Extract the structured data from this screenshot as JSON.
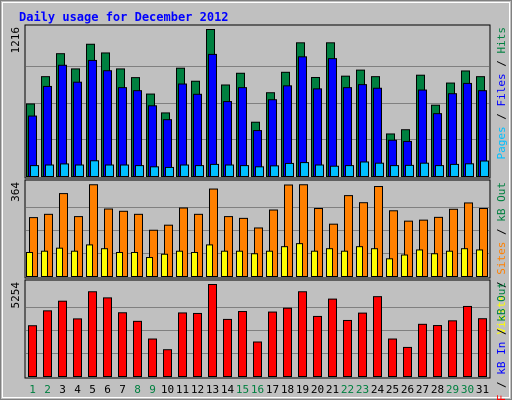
{
  "chart_data": {
    "type": "bar",
    "title": "Daily usage for December 2012",
    "categories": [
      "1",
      "2",
      "3",
      "4",
      "5",
      "6",
      "7",
      "8",
      "9",
      "10",
      "11",
      "12",
      "13",
      "14",
      "15",
      "16",
      "17",
      "18",
      "19",
      "20",
      "21",
      "22",
      "23",
      "24",
      "25",
      "26",
      "27",
      "28",
      "29",
      "30",
      "31"
    ],
    "weekend_days": [
      "1",
      "2",
      "8",
      "9",
      "15",
      "16",
      "22",
      "23",
      "29",
      "30"
    ],
    "panels": [
      {
        "name": "hits-files-pages",
        "ymax_label": "1216",
        "ymax": 1216,
        "right_label": [
          {
            "text": "Pages",
            "color": "#00c0ff"
          },
          {
            "text": " / ",
            "color": "#000000"
          },
          {
            "text": "Files",
            "color": "#0000ff"
          },
          {
            "text": " / ",
            "color": "#000000"
          },
          {
            "text": "Hits",
            "color": "#008040"
          }
        ],
        "series": [
          {
            "name": "Hits",
            "color": "#008040",
            "values": [
              600,
              826,
              1016,
              890,
              1094,
              1022,
              890,
              818,
              682,
              526,
              896,
              788,
              1216,
              757,
              854,
              449,
              693,
              862,
              1106,
              819,
              1106,
              830,
              880,
              826,
              352,
              387,
              838,
              590,
              773,
              873,
              826
            ]
          },
          {
            "name": "Files",
            "color": "#0000ff",
            "values": [
              500,
              745,
              920,
              780,
              960,
              875,
              735,
              710,
              585,
              470,
              765,
              680,
              1010,
              620,
              735,
              380,
              635,
              750,
              990,
              725,
              975,
              735,
              760,
              730,
              300,
              290,
              715,
              520,
              685,
              770,
              710
            ]
          },
          {
            "name": "Pages",
            "color": "#00c0ff",
            "values": [
              90,
              95,
              104,
              95,
              130,
              95,
              95,
              90,
              80,
              75,
              95,
              90,
              100,
              95,
              90,
              80,
              88,
              108,
              115,
              95,
              85,
              90,
              120,
              110,
              90,
              92,
              110,
              90,
              100,
              105,
              128
            ]
          }
        ]
      },
      {
        "name": "visits-sites-kbout",
        "ymax_label": "364",
        "ymax": 364,
        "right_label": [
          {
            "text": "Visits",
            "color": "#ffff00"
          },
          {
            "text": " / ",
            "color": "#000000"
          },
          {
            "text": "Sites",
            "color": "#ff8000"
          },
          {
            "text": " / ",
            "color": "#000000"
          },
          {
            "text": "kB Out",
            "color": "#008040"
          }
        ],
        "series": [
          {
            "name": "Sites",
            "color": "#ff8000",
            "values": [
              233,
              246,
              328,
              237,
              363,
              267,
              258,
              246,
              183,
              203,
              271,
              246,
              346,
              237,
              230,
              192,
              263,
              362,
              363,
              269,
              207,
              320,
              292,
              356,
              260,
              219,
              223,
              234,
              266,
              291,
              269
            ]
          },
          {
            "name": "Visits",
            "color": "#ffff00",
            "values": [
              95,
              100,
              112,
              100,
              125,
              110,
              95,
              95,
              75,
              88,
              100,
              95,
              125,
              100,
              100,
              90,
              100,
              118,
              130,
              100,
              110,
              100,
              118,
              110,
              70,
              85,
              105,
              90,
              100,
              110,
              105
            ]
          }
        ]
      },
      {
        "name": "kbin-kbf",
        "ymax_label": "5254",
        "ymax": 5254,
        "right_label": [
          {
            "text": "kB F",
            "color": "#ff0000"
          },
          {
            "text": " / ",
            "color": "#000000"
          },
          {
            "text": "kB In",
            "color": "#0000ff"
          },
          {
            "text": " / ",
            "color": "#000000"
          },
          {
            "text": "kB Out",
            "color": "#008040"
          }
        ],
        "series": [
          {
            "name": "kB F",
            "color": "#ff0000",
            "values": [
              2900,
              3750,
              4300,
              3290,
              4840,
              4490,
              3640,
              3150,
              2140,
              1530,
              3630,
              3600,
              5254,
              3260,
              3710,
              1970,
              3680,
              3900,
              4840,
              3430,
              4420,
              3200,
              3620,
              4560,
              2140,
              1660,
              2980,
              2910,
              3180,
              4000,
              3300
            ]
          }
        ]
      }
    ]
  }
}
